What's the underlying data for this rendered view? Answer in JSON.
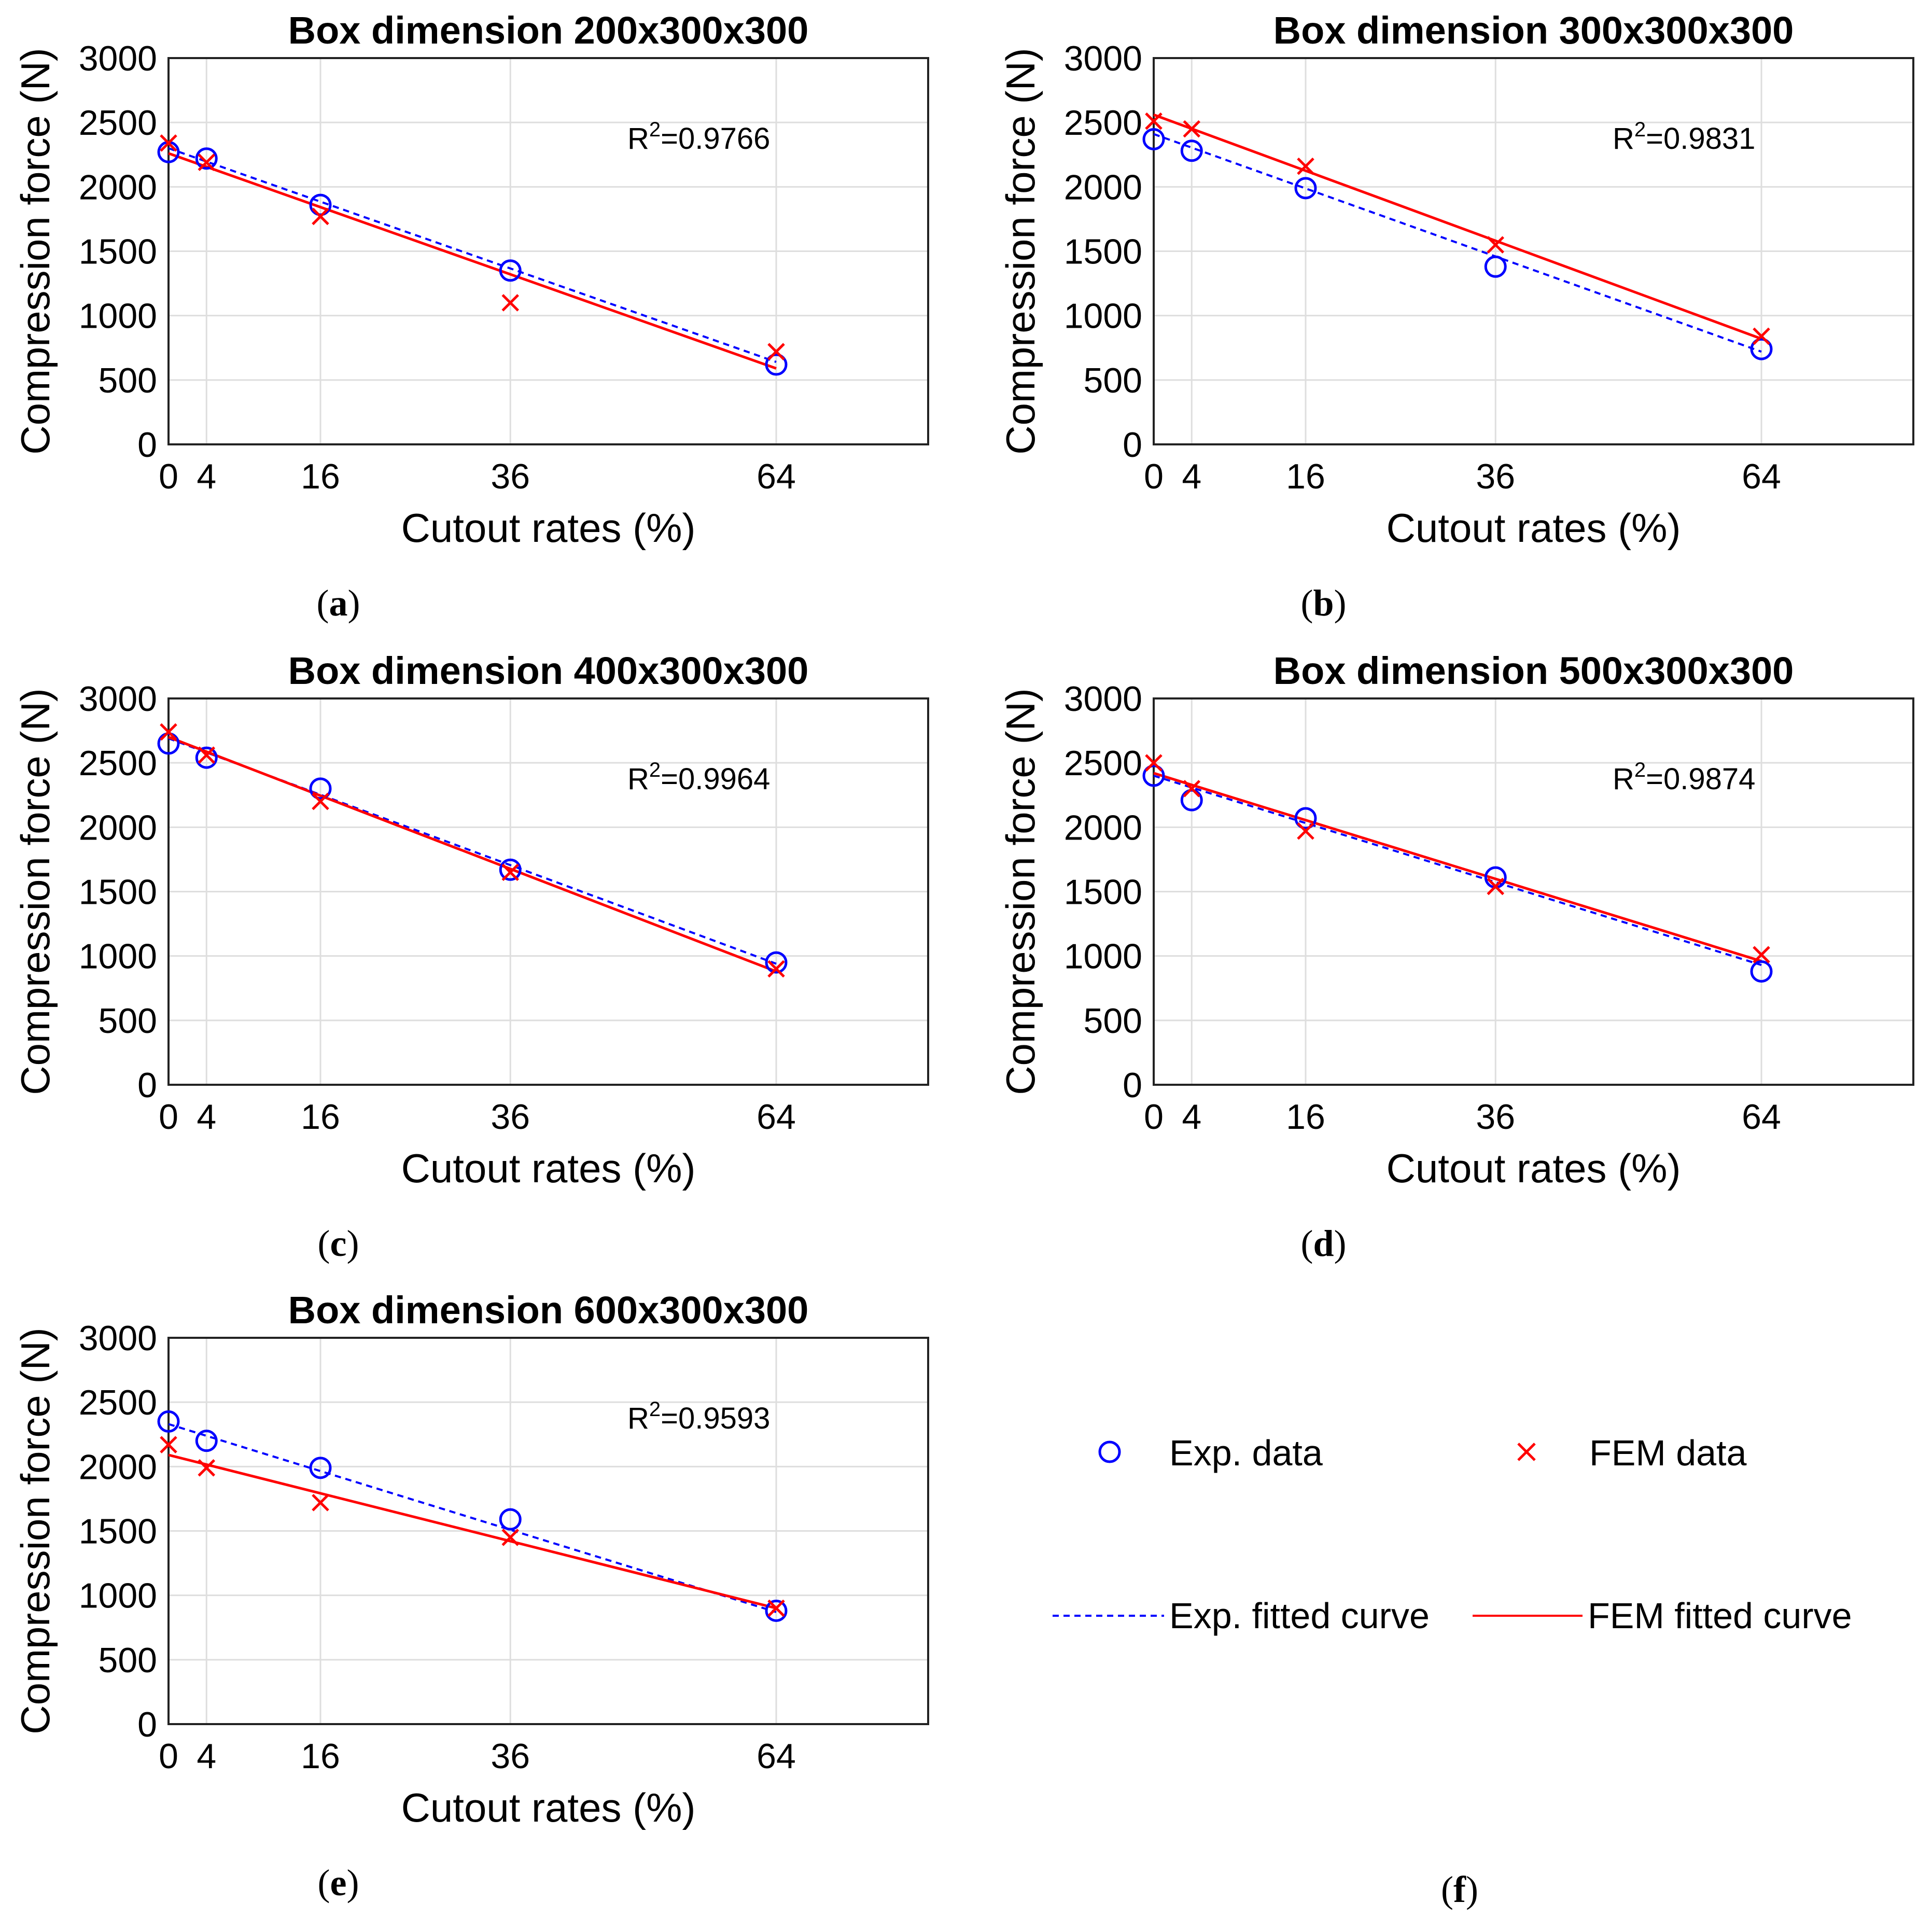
{
  "colors": {
    "exp": "#0000ff",
    "fem": "#ff0000"
  },
  "legend": {
    "exp_data": "Exp. data",
    "fem_data": "FEM data",
    "exp_fit": "Exp. fitted curve",
    "fem_fit": "FEM fitted curve",
    "caption": "f"
  },
  "chart_data": [
    {
      "type": "scatter",
      "panel": "a",
      "title": "Box dimension 200x300x300",
      "xlabel": "Cutout rates (%)",
      "ylabel": "Compression force (N)",
      "xlim": [
        0,
        80
      ],
      "ylim": [
        0,
        3000
      ],
      "xticks": [
        0,
        4,
        16,
        36,
        64
      ],
      "yticks": [
        0,
        500,
        1000,
        1500,
        2000,
        2500,
        3000
      ],
      "r2": "0.9766",
      "series": [
        {
          "name": "Exp. data",
          "marker": "circle",
          "x": [
            0,
            4,
            16,
            36,
            64
          ],
          "y": [
            2270,
            2220,
            1860,
            1350,
            620
          ]
        },
        {
          "name": "FEM data",
          "marker": "x",
          "x": [
            0,
            4,
            16,
            36,
            64
          ],
          "y": [
            2340,
            2190,
            1770,
            1100,
            720
          ]
        },
        {
          "name": "Exp. fitted curve",
          "line": "dashed",
          "x": [
            0,
            64
          ],
          "y": [
            2300,
            640
          ]
        },
        {
          "name": "FEM fitted curve",
          "line": "solid",
          "x": [
            0,
            64
          ],
          "y": [
            2260,
            590
          ]
        }
      ]
    },
    {
      "type": "scatter",
      "panel": "b",
      "title": "Box dimension 300x300x300",
      "xlabel": "Cutout rates (%)",
      "ylabel": "Compression force (N)",
      "xlim": [
        0,
        80
      ],
      "ylim": [
        0,
        3000
      ],
      "xticks": [
        0,
        4,
        16,
        36,
        64
      ],
      "yticks": [
        0,
        500,
        1000,
        1500,
        2000,
        2500,
        3000
      ],
      "r2": "0.9831",
      "series": [
        {
          "name": "Exp. data",
          "marker": "circle",
          "x": [
            0,
            4,
            16,
            36,
            64
          ],
          "y": [
            2370,
            2280,
            1990,
            1380,
            740
          ]
        },
        {
          "name": "FEM data",
          "marker": "x",
          "x": [
            0,
            4,
            16,
            36,
            64
          ],
          "y": [
            2510,
            2450,
            2160,
            1550,
            840
          ]
        },
        {
          "name": "Exp. fitted curve",
          "line": "dashed",
          "x": [
            0,
            64
          ],
          "y": [
            2410,
            720
          ]
        },
        {
          "name": "FEM fitted curve",
          "line": "solid",
          "x": [
            0,
            64
          ],
          "y": [
            2560,
            820
          ]
        }
      ]
    },
    {
      "type": "scatter",
      "panel": "c",
      "title": "Box dimension 400x300x300",
      "xlabel": "Cutout rates (%)",
      "ylabel": "Compression force (N)",
      "xlim": [
        0,
        80
      ],
      "ylim": [
        0,
        3000
      ],
      "xticks": [
        0,
        4,
        16,
        36,
        64
      ],
      "yticks": [
        0,
        500,
        1000,
        1500,
        2000,
        2500,
        3000
      ],
      "r2": "0.9964",
      "series": [
        {
          "name": "Exp. data",
          "marker": "circle",
          "x": [
            0,
            4,
            16,
            36,
            64
          ],
          "y": [
            2650,
            2540,
            2300,
            1670,
            950
          ]
        },
        {
          "name": "FEM data",
          "marker": "x",
          "x": [
            0,
            4,
            16,
            36,
            64
          ],
          "y": [
            2740,
            2560,
            2200,
            1650,
            900
          ]
        },
        {
          "name": "Exp. fitted curve",
          "line": "dashed",
          "x": [
            0,
            64
          ],
          "y": [
            2690,
            940
          ]
        },
        {
          "name": "FEM fitted curve",
          "line": "solid",
          "x": [
            0,
            64
          ],
          "y": [
            2700,
            880
          ]
        }
      ]
    },
    {
      "type": "scatter",
      "panel": "d",
      "title": "Box dimension 500x300x300",
      "xlabel": "Cutout rates (%)",
      "ylabel": "Compression force (N)",
      "xlim": [
        0,
        80
      ],
      "ylim": [
        0,
        3000
      ],
      "xticks": [
        0,
        4,
        16,
        36,
        64
      ],
      "yticks": [
        0,
        500,
        1000,
        1500,
        2000,
        2500,
        3000
      ],
      "r2": "0.9874",
      "series": [
        {
          "name": "Exp. data",
          "marker": "circle",
          "x": [
            0,
            4,
            16,
            36,
            64
          ],
          "y": [
            2400,
            2210,
            2070,
            1610,
            880
          ]
        },
        {
          "name": "FEM data",
          "marker": "x",
          "x": [
            0,
            4,
            16,
            36,
            64
          ],
          "y": [
            2500,
            2300,
            1970,
            1540,
            1010
          ]
        },
        {
          "name": "Exp. fitted curve",
          "line": "dashed",
          "x": [
            0,
            64
          ],
          "y": [
            2400,
            930
          ]
        },
        {
          "name": "FEM fitted curve",
          "line": "solid",
          "x": [
            0,
            64
          ],
          "y": [
            2420,
            960
          ]
        }
      ]
    },
    {
      "type": "scatter",
      "panel": "e",
      "title": "Box dimension 600x300x300",
      "xlabel": "Cutout rates (%)",
      "ylabel": "Compression force (N)",
      "xlim": [
        0,
        80
      ],
      "ylim": [
        0,
        3000
      ],
      "xticks": [
        0,
        4,
        16,
        36,
        64
      ],
      "yticks": [
        0,
        500,
        1000,
        1500,
        2000,
        2500,
        3000
      ],
      "r2": "0.9593",
      "series": [
        {
          "name": "Exp. data",
          "marker": "circle",
          "x": [
            0,
            4,
            16,
            36,
            64
          ],
          "y": [
            2350,
            2200,
            1990,
            1590,
            880
          ]
        },
        {
          "name": "FEM data",
          "marker": "x",
          "x": [
            0,
            4,
            16,
            36,
            64
          ],
          "y": [
            2170,
            1990,
            1720,
            1450,
            900
          ]
        },
        {
          "name": "Exp. fitted curve",
          "line": "dashed",
          "x": [
            0,
            64
          ],
          "y": [
            2330,
            870
          ]
        },
        {
          "name": "FEM fitted curve",
          "line": "solid",
          "x": [
            0,
            64
          ],
          "y": [
            2090,
            900
          ]
        }
      ]
    }
  ]
}
